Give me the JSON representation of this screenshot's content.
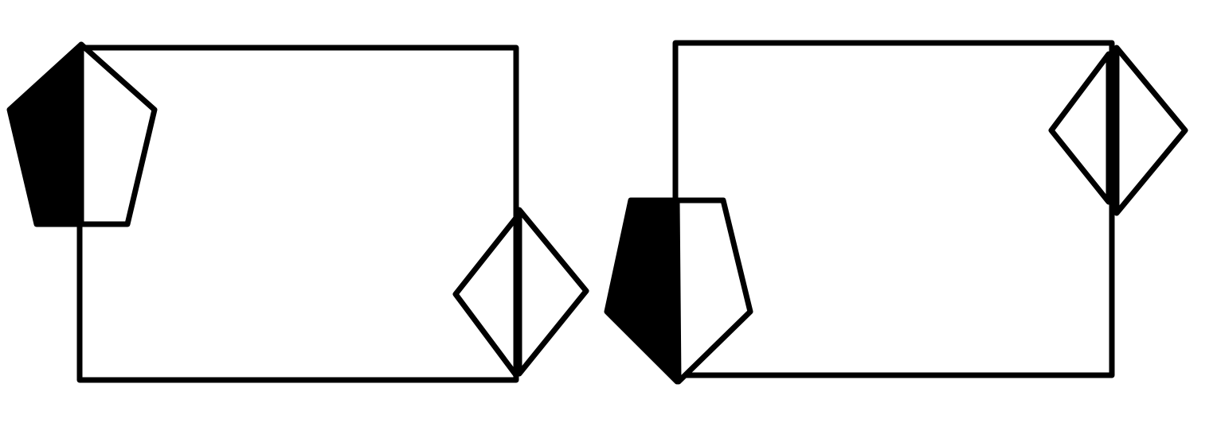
{
  "colors": {
    "ink": "#000000",
    "background": "#ffffff"
  },
  "figures": [
    {
      "name": "left-figure",
      "parts": [
        "rectangle",
        "pentagon-half-shaded",
        "diamond-split"
      ]
    },
    {
      "name": "right-figure",
      "parts": [
        "rectangle",
        "pentagon-half-shaded",
        "diamond-split"
      ]
    }
  ]
}
